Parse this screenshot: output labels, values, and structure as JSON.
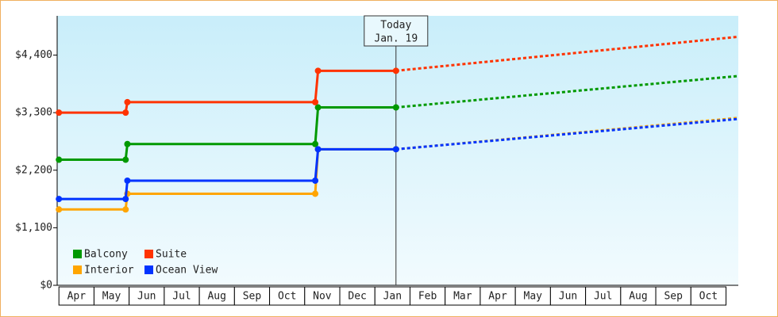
{
  "chart_data": {
    "type": "step-line",
    "categories": [
      "Apr",
      "May",
      "Jun",
      "Jul",
      "Aug",
      "Sep",
      "Oct",
      "Nov",
      "Dec",
      "Jan",
      "Feb",
      "Mar",
      "Apr",
      "May",
      "Jun",
      "Jul",
      "Aug",
      "Sep",
      "Oct"
    ],
    "x": [
      0,
      1.9,
      1.95,
      7.3,
      7.38,
      9.6,
      19.35
    ],
    "xlim": [
      -0.05,
      19.35
    ],
    "ylim": [
      0,
      5150
    ],
    "yticks": [
      {
        "value": 0,
        "label": "$0"
      },
      {
        "value": 1100,
        "label": "$1,100"
      },
      {
        "value": 2200,
        "label": "$2,200"
      },
      {
        "value": 3300,
        "label": "$3,300"
      },
      {
        "value": 4400,
        "label": "$4,400"
      }
    ],
    "annotation": {
      "x": 9.6,
      "lines": [
        "Today",
        "Jan. 19"
      ]
    },
    "legend": "lower left",
    "series": [
      {
        "name": "Balcony",
        "color": "#009900",
        "values": [
          2400,
          2400,
          2700,
          2700,
          3400,
          3400,
          4000
        ]
      },
      {
        "name": "Suite",
        "color": "#ff3300",
        "values": [
          3300,
          3300,
          3500,
          3500,
          4100,
          4100,
          4750
        ]
      },
      {
        "name": "Interior",
        "color": "#ffa500",
        "values": [
          1450,
          1450,
          1750,
          1750,
          2600,
          2600,
          3200
        ]
      },
      {
        "name": "Ocean View",
        "color": "#0033ff",
        "values": [
          1650,
          1650,
          2000,
          2000,
          2600,
          2600,
          3180
        ]
      }
    ]
  }
}
